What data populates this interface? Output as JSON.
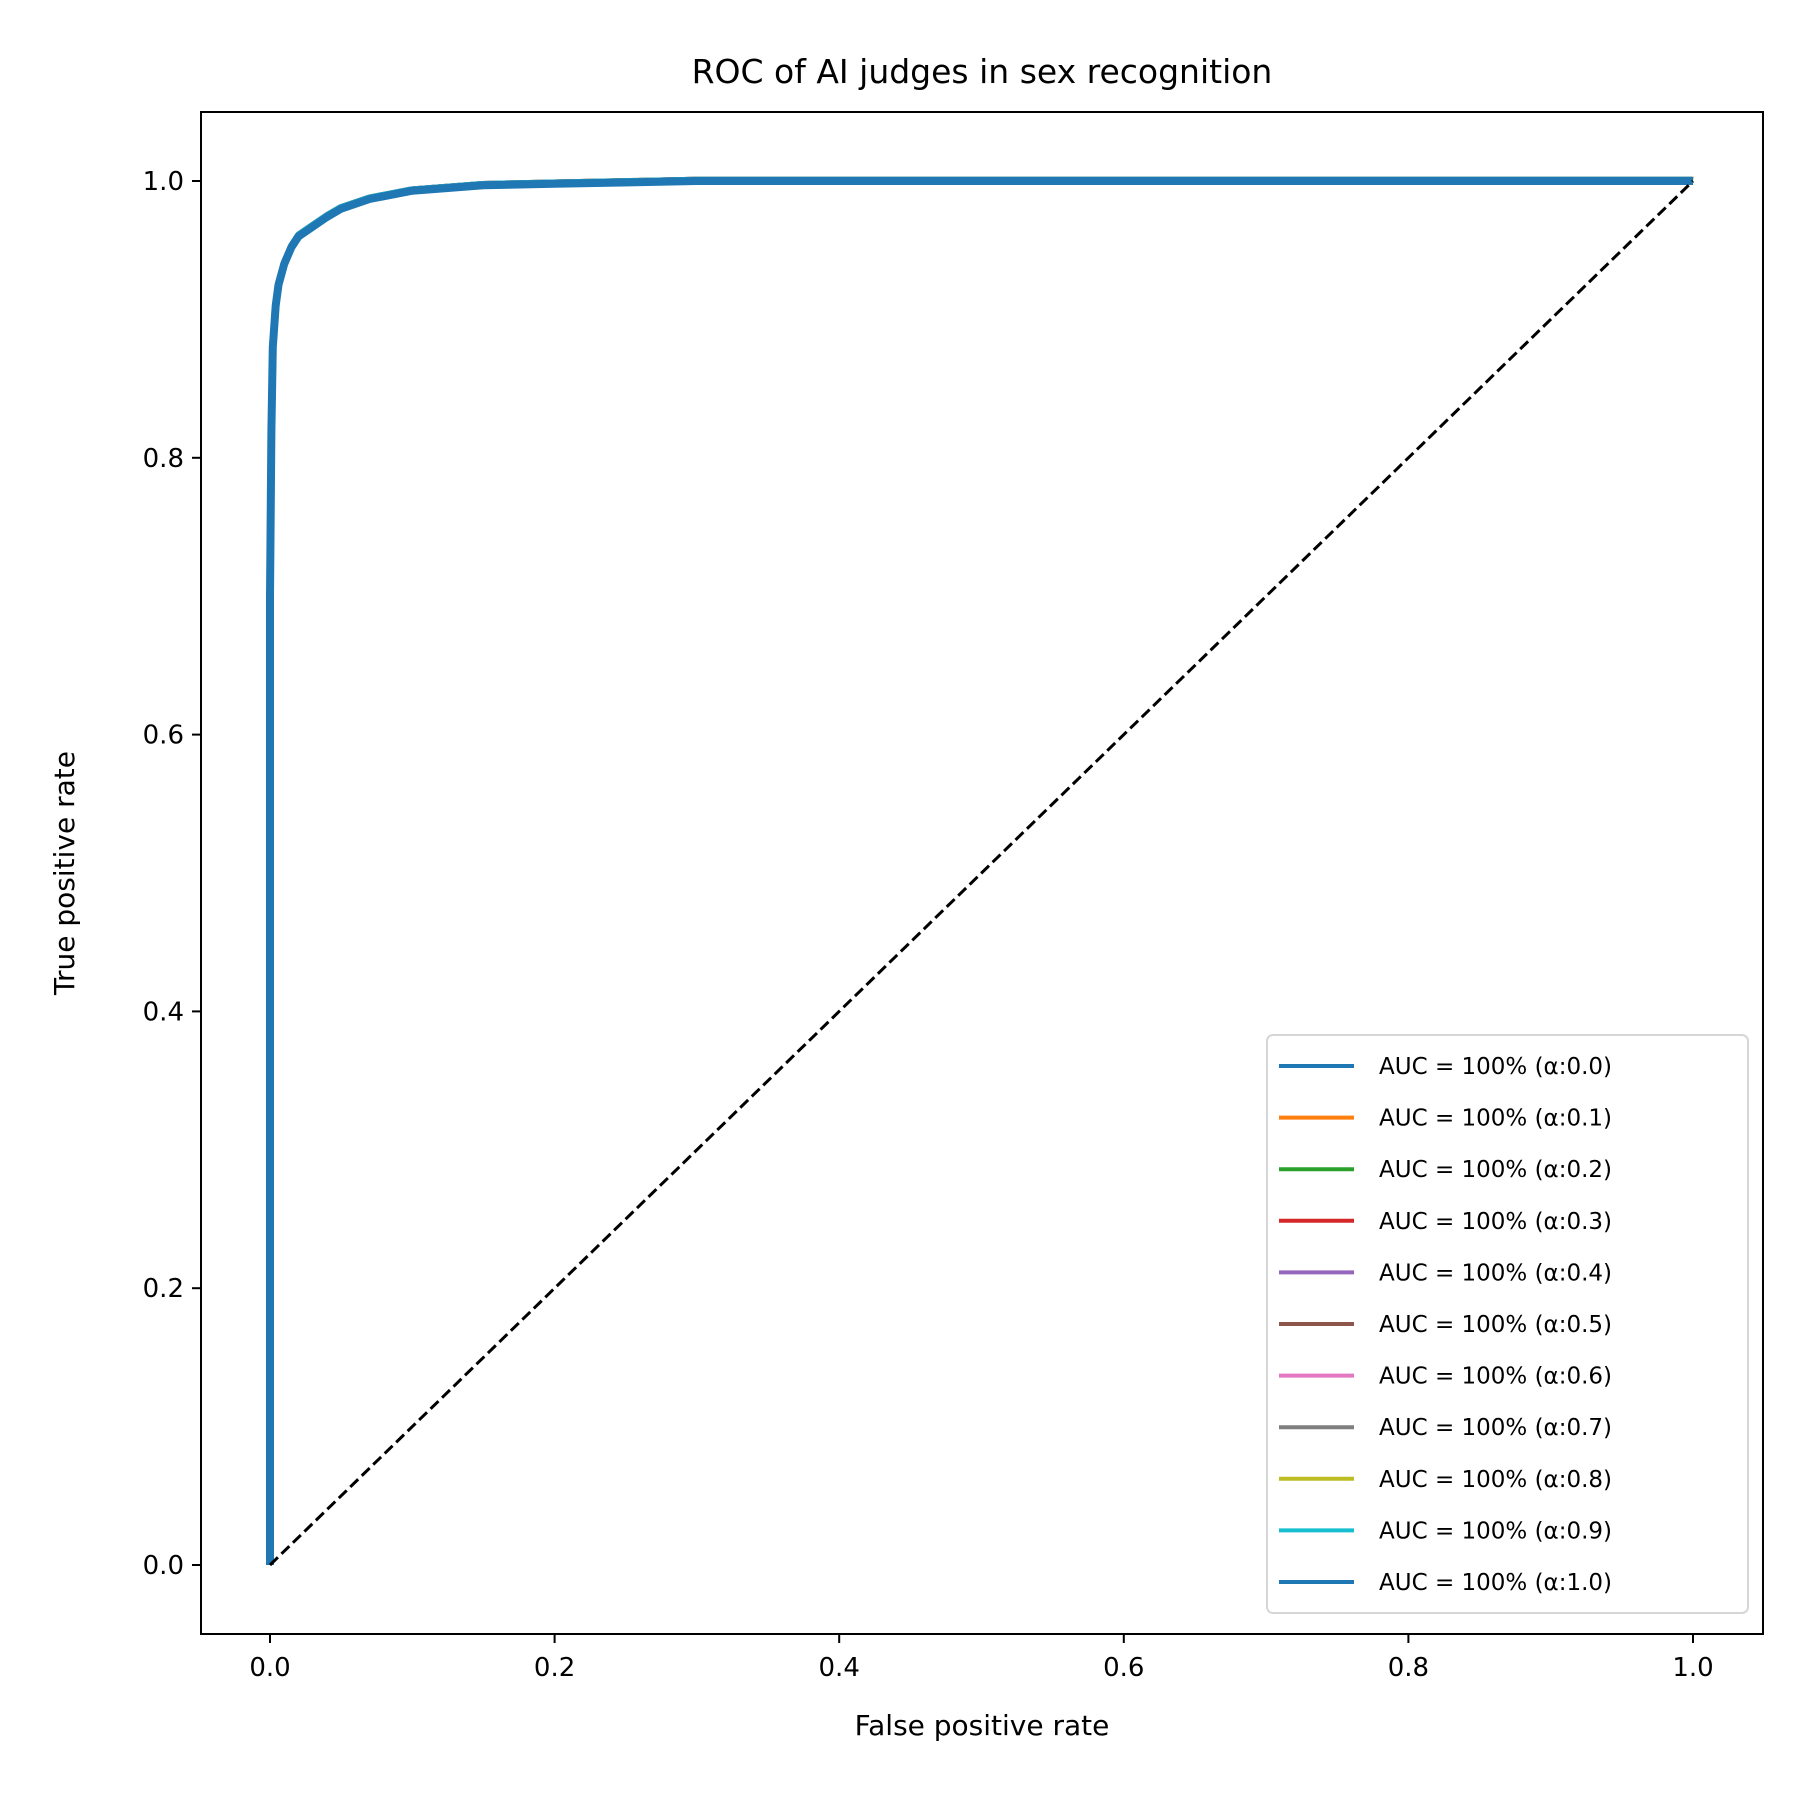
{
  "chart_data": {
    "type": "line",
    "title": "ROC of AI judges in sex recognition",
    "xlabel": "False positive rate",
    "ylabel": "True positive rate",
    "xlim": [
      -0.05,
      1.05
    ],
    "ylim": [
      -0.05,
      1.05
    ],
    "xticks": [
      "0.0",
      "0.2",
      "0.4",
      "0.6",
      "0.8",
      "1.0"
    ],
    "yticks": [
      "0.0",
      "0.2",
      "0.4",
      "0.6",
      "0.8",
      "1.0"
    ],
    "grid": false,
    "legend_position": "lower-right",
    "curve": {
      "fpr": [
        0,
        0,
        0.001,
        0.002,
        0.004,
        0.006,
        0.01,
        0.015,
        0.02,
        0.03,
        0.04,
        0.05,
        0.07,
        0.1,
        0.15,
        0.2,
        0.3,
        1.0
      ],
      "tpr": [
        0,
        0.7,
        0.82,
        0.88,
        0.91,
        0.925,
        0.94,
        0.952,
        0.96,
        0.967,
        0.974,
        0.98,
        0.987,
        0.993,
        0.997,
        0.998,
        1.0,
        1.0
      ]
    },
    "series": [
      {
        "name": "AUC = 100% (α:0.0)",
        "color": "#1f77b4"
      },
      {
        "name": "AUC = 100% (α:0.1)",
        "color": "#ff7f0e"
      },
      {
        "name": "AUC = 100% (α:0.2)",
        "color": "#2ca02c"
      },
      {
        "name": "AUC = 100% (α:0.3)",
        "color": "#d62728"
      },
      {
        "name": "AUC = 100% (α:0.4)",
        "color": "#9467bd"
      },
      {
        "name": "AUC = 100% (α:0.5)",
        "color": "#8c564b"
      },
      {
        "name": "AUC = 100% (α:0.6)",
        "color": "#e377c2"
      },
      {
        "name": "AUC = 100% (α:0.7)",
        "color": "#7f7f7f"
      },
      {
        "name": "AUC = 100% (α:0.8)",
        "color": "#bcbd22"
      },
      {
        "name": "AUC = 100% (α:0.9)",
        "color": "#17becf"
      },
      {
        "name": "AUC = 100% (α:1.0)",
        "color": "#1f77b4"
      }
    ],
    "diagonal": {
      "x": [
        0,
        1
      ],
      "y": [
        0,
        1
      ],
      "color": "#000000",
      "style": "dashed"
    }
  }
}
